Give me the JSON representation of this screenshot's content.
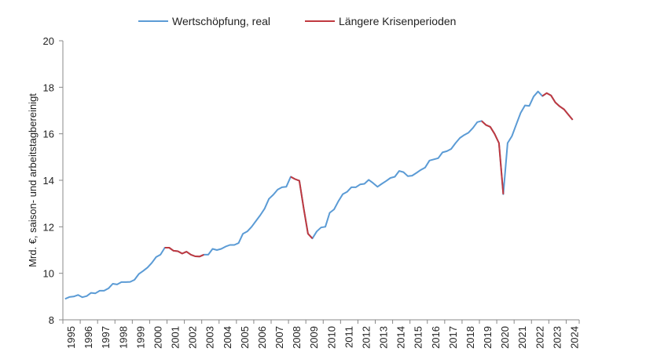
{
  "chart_data": {
    "type": "line",
    "title": "",
    "xlabel": "",
    "ylabel": "Mrd. €, saison- und arbeitstagbereinigt",
    "ylim": [
      8,
      20
    ],
    "yticks": [
      "8",
      "10",
      "12",
      "14",
      "16",
      "18",
      "20"
    ],
    "xlim": [
      1995,
      2024.75
    ],
    "x_tick_labels": [
      "1995",
      "1996",
      "1997",
      "1998",
      "1999",
      "2000",
      "2001",
      "2002",
      "2003",
      "2004",
      "2005",
      "2006",
      "2007",
      "2008",
      "2009",
      "2010",
      "2011",
      "2012",
      "2013",
      "2014",
      "2015",
      "2016",
      "2017",
      "2018",
      "2019",
      "2020",
      "2021",
      "2022",
      "2023",
      "2024"
    ],
    "grid": false,
    "legend": [
      "Wertschöpfung, real",
      "Längere Krisenperioden"
    ],
    "colors": {
      "main": "#5b9bd5",
      "crisis": "#c0393f",
      "axis": "#888888"
    },
    "series": [
      {
        "name": "Wertschöpfung, real",
        "frequency": "quarterly",
        "start": "1995Q1",
        "values": [
          8.9,
          8.98,
          9.0,
          9.07,
          8.97,
          9.02,
          9.16,
          9.14,
          9.25,
          9.25,
          9.35,
          9.55,
          9.52,
          9.62,
          9.62,
          9.63,
          9.72,
          9.97,
          10.1,
          10.25,
          10.45,
          10.7,
          10.8,
          11.1,
          11.1,
          10.97,
          10.95,
          10.85,
          10.93,
          10.8,
          10.73,
          10.72,
          10.8,
          10.8,
          11.05,
          11.0,
          11.05,
          11.15,
          11.22,
          11.22,
          11.3,
          11.7,
          11.8,
          12.0,
          12.25,
          12.5,
          12.78,
          13.2,
          13.38,
          13.6,
          13.7,
          13.72,
          14.15,
          14.05,
          13.98,
          12.8,
          11.7,
          11.5,
          11.8,
          11.97,
          12.0,
          12.6,
          12.75,
          13.1,
          13.4,
          13.5,
          13.7,
          13.7,
          13.82,
          13.85,
          14.02,
          13.88,
          13.72,
          13.85,
          13.97,
          14.1,
          14.15,
          14.4,
          14.35,
          14.18,
          14.2,
          14.32,
          14.45,
          14.55,
          14.85,
          14.9,
          14.95,
          15.2,
          15.25,
          15.35,
          15.6,
          15.82,
          15.95,
          16.05,
          16.25,
          16.5,
          16.55,
          16.38,
          16.3,
          16.0,
          15.6,
          13.4,
          15.6,
          15.9,
          16.4,
          16.9,
          17.22,
          17.2,
          17.6,
          17.82,
          17.62,
          17.75,
          17.65,
          17.35,
          17.18,
          17.05,
          16.82,
          16.6
        ]
      },
      {
        "name": "Längere Krisenperioden",
        "segments": [
          {
            "from": "2000Q4",
            "to": "2003Q1"
          },
          {
            "from": "2008Q1",
            "to": "2009Q2"
          },
          {
            "from": "2019Q1",
            "to": "2020Q2"
          },
          {
            "from": "2022Q3",
            "to": "2024Q4"
          }
        ]
      }
    ]
  }
}
